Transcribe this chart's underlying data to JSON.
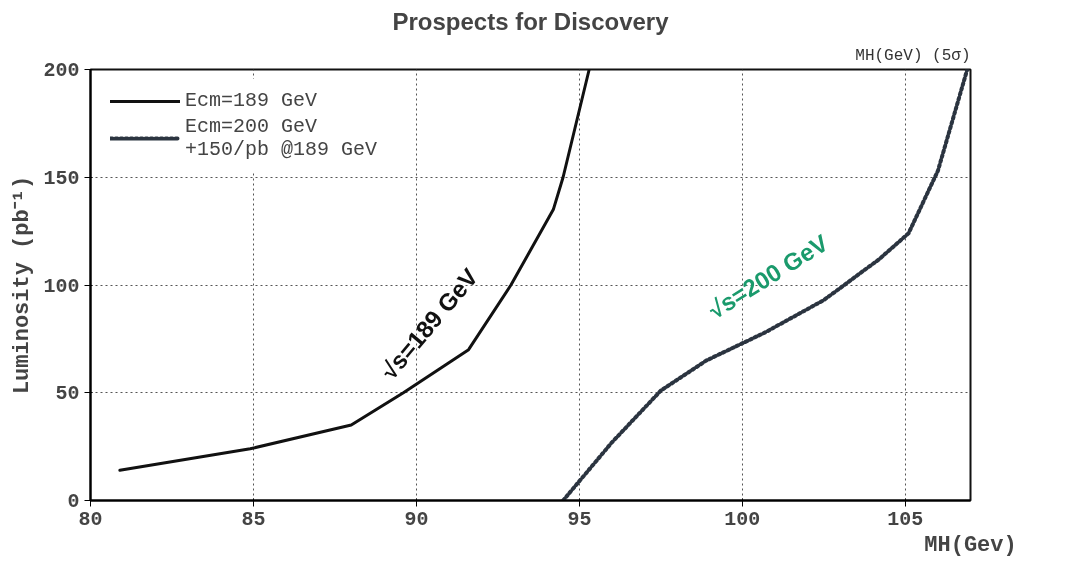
{
  "chart_data": {
    "type": "line",
    "title": "Prospects for Discovery",
    "xlabel": "MH(Gev)",
    "ylabel": "Luminosity (pb⁻¹)",
    "xlim": [
      80,
      107
    ],
    "ylim": [
      0,
      200
    ],
    "xticks": [
      80,
      85,
      90,
      95,
      100,
      105
    ],
    "yticks": [
      0,
      50,
      100,
      150,
      200
    ],
    "grid": true,
    "legend": "top left",
    "series": [
      {
        "name": "Ecm=189 GeV",
        "color": "#111111",
        "line_style": "solid",
        "x": [
          80.9,
          84.9,
          88.0,
          89.6,
          91.6,
          92.9,
          94.2,
          94.5,
          95.3
        ],
        "values": [
          14,
          24,
          35,
          50,
          70,
          100,
          135,
          150,
          200
        ]
      },
      {
        "name": "Ecm=200 GeV\n+150/pb @189 GeV",
        "color": "#2b3440",
        "line_style": "dotted",
        "x": [
          94.5,
          96.0,
          97.5,
          98.9,
          100.7,
          102.5,
          104.2,
          105.1,
          106.0,
          106.9
        ],
        "values": [
          0,
          27,
          51,
          65,
          78,
          93,
          112,
          124,
          153,
          200
        ]
      }
    ],
    "annotations": [
      "√s=189 GeV",
      "√s=200 GeV",
      "MH(GeV) (5σ)"
    ]
  }
}
